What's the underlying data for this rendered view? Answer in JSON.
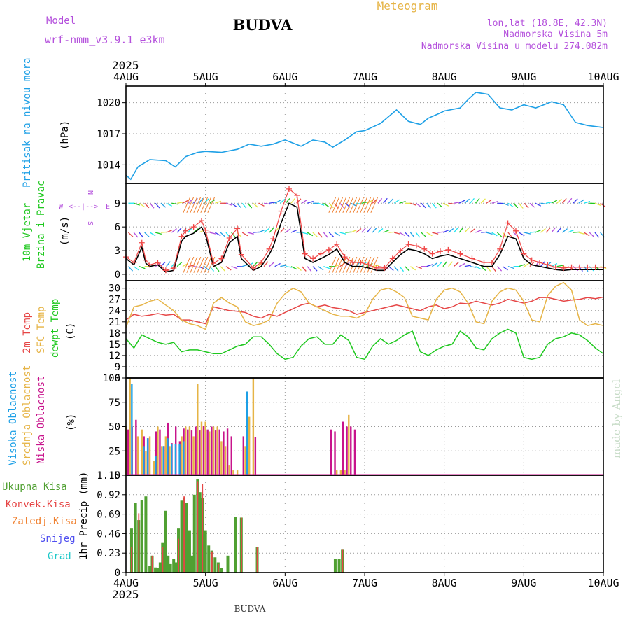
{
  "header": {
    "model_label": "Model",
    "model_name": "wrf-nmm_v3.9.1 e3km",
    "station": "BUDVA",
    "chart_title": "Meteogram",
    "coords": "lon,lat (18.8E, 42.3N)",
    "elevation": "Nadmorska Visina 5m",
    "model_elevation": "Nadmorska Visina u modelu 274.082m",
    "year": "2025",
    "footer_station": "BUDVA",
    "credit": "made by Angel"
  },
  "colors": {
    "pressure": "#1ea0e6",
    "temp2m": "#e64646",
    "sfc": "#e6b446",
    "dewpt": "#1ec81e",
    "high": "#1ea0e6",
    "mid": "#e6b446",
    "low": "#c8148c",
    "precip_total": "#50a032",
    "precip_conv": "#e64646",
    "precip_ice": "#f08232",
    "snow": "#5050f0",
    "hail": "#1ec8c8",
    "wind_speed": "#000000",
    "gust": "#f04646",
    "purple": "#b450dc"
  },
  "chart_data": [
    {
      "id": "pressure",
      "type": "line",
      "ylabel": "Pritisak na nivou mora",
      "unit": "(hPa)",
      "x_ticks": [
        "4AUG",
        "5AUG",
        "6AUG",
        "7AUG",
        "8AUG",
        "9AUG",
        "10AUG"
      ],
      "yticks": [
        1014,
        1017,
        1020
      ],
      "ylim": [
        1012.2,
        1021.6
      ],
      "x_days": [
        0,
        0.06,
        0.15,
        0.3,
        0.5,
        0.62,
        0.75,
        0.9,
        1.0,
        1.2,
        1.4,
        1.55,
        1.7,
        1.85,
        2.0,
        2.2,
        2.35,
        2.5,
        2.6,
        2.75,
        2.9,
        3.0,
        3.2,
        3.4,
        3.55,
        3.7,
        3.8,
        3.95,
        4.0,
        4.2,
        4.3,
        4.4,
        4.55,
        4.7,
        4.85,
        5.0,
        5.15,
        5.35,
        5.5,
        5.65,
        5.8,
        6.0
      ],
      "values": [
        1013.0,
        1012.6,
        1013.8,
        1014.5,
        1014.4,
        1013.8,
        1014.8,
        1015.2,
        1015.3,
        1015.2,
        1015.5,
        1016.0,
        1015.8,
        1016.0,
        1016.4,
        1015.8,
        1016.4,
        1016.2,
        1015.7,
        1016.4,
        1017.2,
        1017.3,
        1018.0,
        1019.3,
        1018.2,
        1017.9,
        1018.5,
        1019.0,
        1019.2,
        1019.5,
        1020.3,
        1021.0,
        1020.8,
        1019.5,
        1019.3,
        1019.8,
        1019.5,
        1020.1,
        1019.8,
        1018.1,
        1017.8,
        1017.6
      ]
    },
    {
      "id": "wind",
      "type": "line",
      "ylabel": "10m Vjetar",
      "ylabel2": "Brzina i Pravac",
      "unit": "(m/s)",
      "compass": {
        "n": "N",
        "w": "W",
        "e": "E",
        "s": "S"
      },
      "yticks": [
        0,
        3,
        6,
        9
      ],
      "ylim": [
        -0.8,
        11.5
      ],
      "x_days": [
        0,
        0.1,
        0.2,
        0.25,
        0.3,
        0.4,
        0.5,
        0.6,
        0.7,
        0.75,
        0.85,
        0.95,
        1.0,
        1.1,
        1.2,
        1.3,
        1.4,
        1.45,
        1.6,
        1.7,
        1.8,
        1.85,
        1.95,
        2.05,
        2.15,
        2.25,
        2.35,
        2.45,
        2.55,
        2.65,
        2.75,
        2.85,
        2.95,
        3.05,
        3.15,
        3.25,
        3.35,
        3.45,
        3.55,
        3.65,
        3.75,
        3.85,
        3.95,
        4.05,
        4.2,
        4.35,
        4.5,
        4.6,
        4.7,
        4.8,
        4.9,
        5.0,
        5.1,
        5.2,
        5.3,
        5.4,
        5.5,
        5.6,
        5.7,
        5.8,
        5.9,
        6.0
      ],
      "speed": [
        2.0,
        1.2,
        3.4,
        1.4,
        1.0,
        1.2,
        0.3,
        0.5,
        4.2,
        4.8,
        5.2,
        6.0,
        5.0,
        1.0,
        1.5,
        4.0,
        4.8,
        2.0,
        0.5,
        1.0,
        2.5,
        3.5,
        6.5,
        9.0,
        8.5,
        2.0,
        1.5,
        2.0,
        2.5,
        3.2,
        1.5,
        1.0,
        1.0,
        0.8,
        0.5,
        0.5,
        1.5,
        2.5,
        3.2,
        3.0,
        2.6,
        2.0,
        2.3,
        2.5,
        2.0,
        1.5,
        1.0,
        1.0,
        2.5,
        4.8,
        4.5,
        2.0,
        1.2,
        1.0,
        0.8,
        0.6,
        0.5,
        0.6,
        0.6,
        0.6,
        0.6,
        0.6
      ],
      "gust": [
        2.2,
        1.5,
        4.0,
        1.8,
        1.2,
        1.5,
        0.5,
        0.8,
        4.8,
        5.5,
        6.0,
        6.8,
        5.6,
        1.4,
        2.0,
        4.6,
        5.8,
        2.5,
        0.8,
        1.5,
        3.2,
        4.5,
        8.0,
        10.8,
        10.0,
        2.6,
        2.0,
        2.6,
        3.1,
        3.8,
        2.2,
        1.5,
        1.5,
        1.2,
        0.8,
        0.8,
        2.0,
        3.0,
        3.8,
        3.6,
        3.2,
        2.6,
        2.9,
        3.1,
        2.6,
        2.0,
        1.5,
        1.5,
        3.2,
        6.5,
        5.5,
        2.6,
        1.8,
        1.5,
        1.2,
        0.9,
        0.8,
        0.9,
        0.9,
        0.9,
        0.9,
        0.9
      ]
    },
    {
      "id": "temperature",
      "type": "line",
      "ylabel": "2m Temp",
      "ylabel2": "SFC Temp",
      "ylabel3": "dewpt Temp",
      "unit": "(C)",
      "yticks": [
        6,
        9,
        12,
        15,
        18,
        21,
        24,
        27,
        30
      ],
      "ylim": [
        6,
        32
      ],
      "x_days": [
        0,
        0.1,
        0.2,
        0.3,
        0.4,
        0.5,
        0.6,
        0.7,
        0.8,
        0.9,
        1.0,
        1.1,
        1.2,
        1.3,
        1.4,
        1.5,
        1.6,
        1.7,
        1.8,
        1.9,
        2.0,
        2.1,
        2.2,
        2.3,
        2.4,
        2.5,
        2.6,
        2.7,
        2.8,
        2.9,
        3.0,
        3.1,
        3.2,
        3.3,
        3.4,
        3.5,
        3.6,
        3.7,
        3.8,
        3.9,
        4.0,
        4.1,
        4.2,
        4.3,
        4.4,
        4.5,
        4.6,
        4.7,
        4.8,
        4.9,
        5.0,
        5.1,
        5.2,
        5.3,
        5.4,
        5.5,
        5.6,
        5.7,
        5.8,
        5.9,
        6.0
      ],
      "series": [
        {
          "name": "2m Temp",
          "values": [
            21.5,
            23.0,
            22.5,
            22.8,
            23.2,
            22.8,
            23.0,
            21.5,
            21.5,
            21.0,
            20.5,
            25.0,
            24.5,
            24.0,
            23.8,
            23.5,
            22.5,
            22.0,
            23.0,
            22.5,
            23.5,
            24.5,
            25.5,
            26.0,
            25.0,
            25.5,
            24.8,
            24.5,
            24.0,
            23.0,
            23.5,
            24.0,
            24.5,
            25.0,
            25.5,
            25.0,
            24.5,
            24.0,
            25.0,
            25.5,
            24.5,
            25.0,
            26.0,
            25.8,
            26.5,
            26.0,
            25.5,
            26.0,
            27.0,
            26.5,
            26.0,
            26.5,
            27.5,
            27.5,
            27.0,
            26.5,
            26.8,
            27.0,
            27.5,
            27.2,
            27.6
          ]
        },
        {
          "name": "SFC Temp",
          "values": [
            19.5,
            25.0,
            25.5,
            26.5,
            27.0,
            25.5,
            24.0,
            21.5,
            20.5,
            20.0,
            19.0,
            26.0,
            27.5,
            26.0,
            25.0,
            21.0,
            20.0,
            20.5,
            21.5,
            26.0,
            28.5,
            30.0,
            29.0,
            26.0,
            25.0,
            24.0,
            23.0,
            22.5,
            22.5,
            22.0,
            23.0,
            27.0,
            29.5,
            30.0,
            29.0,
            27.5,
            22.5,
            22.0,
            21.5,
            27.0,
            29.5,
            30.0,
            29.0,
            26.0,
            21.0,
            20.5,
            26.5,
            29.0,
            30.0,
            29.5,
            26.5,
            21.5,
            21.0,
            28.0,
            30.5,
            31.5,
            29.5,
            21.5,
            20.0,
            20.5,
            20.0
          ]
        },
        {
          "name": "dewpt Temp",
          "values": [
            16.5,
            14.0,
            17.5,
            16.5,
            15.5,
            15.0,
            15.5,
            13.0,
            13.5,
            13.5,
            13.0,
            12.5,
            12.5,
            13.5,
            14.5,
            15.0,
            17.0,
            17.0,
            15.0,
            12.5,
            11.0,
            11.5,
            14.5,
            16.5,
            17.0,
            15.0,
            15.0,
            17.5,
            16.0,
            11.5,
            11.0,
            14.5,
            16.5,
            15.0,
            16.0,
            17.5,
            18.5,
            13.0,
            12.0,
            13.5,
            14.5,
            15.0,
            18.5,
            17.0,
            14.0,
            13.5,
            16.5,
            18.0,
            19.0,
            18.0,
            11.5,
            11.0,
            11.5,
            15.0,
            16.5,
            17.0,
            18.0,
            17.5,
            16.0,
            14.0,
            12.5
          ]
        }
      ]
    },
    {
      "id": "clouds",
      "type": "bar",
      "ylabel": "Visoka Oblacnost",
      "ylabel2": "Srednja Oblacnost",
      "ylabel3": "Niska Oblacnost",
      "unit": "(%)",
      "yticks": [
        0,
        25,
        50,
        75,
        100
      ],
      "ylim": [
        0,
        100
      ],
      "x_days": [
        0.0,
        0.05,
        0.1,
        0.15,
        0.2,
        0.25,
        0.3,
        0.35,
        0.4,
        0.45,
        0.5,
        0.55,
        0.6,
        0.65,
        0.7,
        0.75,
        0.8,
        0.85,
        0.9,
        0.95,
        1.0,
        1.05,
        1.1,
        1.15,
        1.2,
        1.25,
        1.3,
        1.35,
        1.4,
        1.45,
        1.5,
        1.55,
        1.6,
        2.55,
        2.6,
        2.65,
        2.7,
        2.75,
        2.8,
        2.85
      ],
      "series": [
        {
          "name": "Visoka Oblacnost",
          "values": [
            0,
            0,
            94,
            0,
            0,
            30,
            38,
            0,
            20,
            0,
            30,
            38,
            32,
            32,
            32,
            35,
            0,
            0,
            0,
            0,
            0,
            0,
            0,
            0,
            0,
            0,
            0,
            0,
            0,
            0,
            0,
            86,
            0,
            0,
            0,
            0,
            0,
            0,
            0,
            0
          ]
        },
        {
          "name": "Srednja Oblacnost",
          "values": [
            50,
            100,
            0,
            40,
            47,
            25,
            40,
            15,
            50,
            30,
            40,
            30,
            0,
            0,
            40,
            50,
            50,
            40,
            94,
            55,
            55,
            45,
            50,
            50,
            35,
            30,
            10,
            5,
            5,
            0,
            30,
            60,
            100,
            0,
            0,
            5,
            5,
            5,
            62,
            0
          ]
        },
        {
          "name": "Niska Oblacnost",
          "values": [
            47,
            50,
            57,
            0,
            40,
            38,
            0,
            45,
            47,
            30,
            54,
            33,
            50,
            35,
            48,
            47,
            46,
            50,
            46,
            51,
            47,
            50,
            46,
            47,
            45,
            48,
            40,
            0,
            0,
            40,
            50,
            0,
            39,
            47,
            45,
            0,
            55,
            50,
            50,
            47
          ]
        }
      ]
    },
    {
      "id": "precip",
      "type": "bar",
      "ylabel": "1hr Precip (mm)",
      "legend": [
        "Ukupna Kisa",
        "Konvek.Kisa",
        "Zaledj.Kisa",
        "Snijeg",
        "Grad"
      ],
      "yticks": [
        0,
        0.23,
        0.46,
        0.69,
        0.92,
        1.15
      ],
      "ylim": [
        0,
        1.15
      ],
      "x_days": [
        0.07,
        0.12,
        0.16,
        0.2,
        0.25,
        0.3,
        0.33,
        0.37,
        0.4,
        0.43,
        0.46,
        0.5,
        0.53,
        0.56,
        0.6,
        0.63,
        0.66,
        0.7,
        0.73,
        0.76,
        0.8,
        0.83,
        0.86,
        0.9,
        0.93,
        0.96,
        1.0,
        1.04,
        1.08,
        1.12,
        1.16,
        1.2,
        1.24,
        1.28,
        1.33,
        1.38,
        1.45,
        1.5,
        1.55,
        1.65,
        2.63,
        2.68,
        2.72
      ],
      "series": [
        {
          "name": "Ukupna Kisa",
          "values": [
            0.52,
            0.82,
            0.62,
            0.86,
            0.9,
            0.08,
            0.2,
            0.06,
            0.05,
            0.12,
            0.35,
            0.73,
            0.2,
            0.1,
            0.16,
            0.12,
            0.52,
            0.85,
            0.88,
            0.82,
            0.5,
            0.2,
            0.92,
            1.1,
            0.95,
            0.88,
            0.5,
            0.32,
            0.26,
            0.18,
            0.12,
            0.05,
            0.0,
            0.2,
            0.0,
            0.66,
            0.65,
            0.0,
            0.0,
            0.3,
            0.16,
            0.16,
            0.27
          ]
        },
        {
          "name": "Konvek.Kisa",
          "values": [
            0.3,
            0.0,
            0.7,
            0.0,
            0.0,
            0.0,
            0.2,
            0.0,
            0.0,
            0.0,
            0.3,
            0.0,
            0.0,
            0.0,
            0.0,
            0.0,
            0.4,
            0.0,
            0.9,
            0.0,
            0.0,
            0.0,
            0.0,
            1.08,
            0.0,
            1.05,
            0.0,
            0.0,
            0.25,
            0.0,
            0.1,
            0.0,
            0.0,
            0.0,
            0.0,
            0.0,
            0.65,
            0.0,
            0.0,
            0.3,
            0.0,
            0.0,
            0.27
          ]
        },
        {
          "name": "Zaledj.Kisa",
          "values": [
            0,
            0,
            0,
            0,
            0,
            0,
            0,
            0,
            0,
            0,
            0,
            0,
            0,
            0,
            0,
            0,
            0,
            0,
            0,
            0,
            0,
            0,
            0,
            0,
            0,
            0,
            0,
            0,
            0,
            0,
            0,
            0,
            0,
            0,
            0,
            0,
            0,
            0,
            0,
            0,
            0,
            0,
            0
          ]
        },
        {
          "name": "Snijeg",
          "values": [
            0,
            0,
            0,
            0,
            0,
            0,
            0,
            0,
            0,
            0,
            0,
            0,
            0,
            0,
            0,
            0,
            0,
            0,
            0,
            0,
            0,
            0,
            0,
            0,
            0,
            0,
            0,
            0,
            0,
            0,
            0,
            0,
            0,
            0,
            0,
            0,
            0,
            0,
            0,
            0,
            0,
            0,
            0
          ]
        },
        {
          "name": "Grad",
          "values": [
            0,
            0,
            0,
            0,
            0,
            0,
            0,
            0,
            0,
            0,
            0,
            0,
            0,
            0,
            0,
            0,
            0,
            0,
            0,
            0,
            0,
            0,
            0,
            0,
            0,
            0,
            0,
            0,
            0,
            0,
            0,
            0,
            0,
            0,
            0,
            0,
            0,
            0,
            0,
            0,
            0,
            0,
            0
          ]
        }
      ]
    }
  ]
}
